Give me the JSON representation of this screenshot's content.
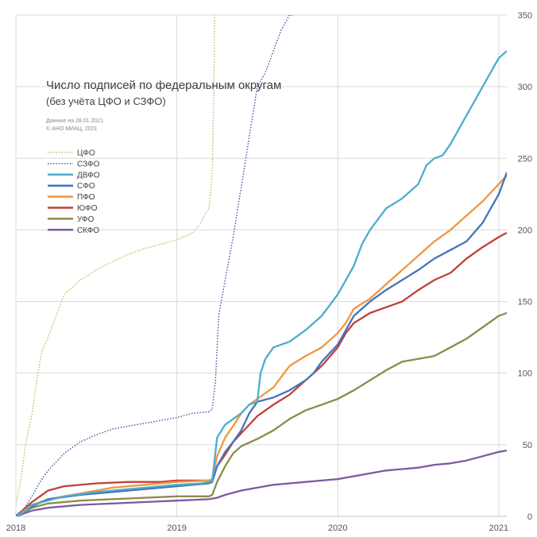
{
  "chart_data": {
    "type": "line",
    "title": "Число подписей по федеральным округам",
    "subtitle": "(без учёта ЦФО и СЗФО)",
    "notes": [
      "Данные на 28.01.2021",
      "© АНО МИАЦ, 2021"
    ],
    "xlabel": "",
    "ylabel": "",
    "x_ticks": [
      "2018",
      "2019",
      "2020",
      "2021"
    ],
    "xlim": [
      2018.0,
      2021.05
    ],
    "ylim": [
      0,
      350
    ],
    "y_ticks": [
      0,
      50,
      100,
      150,
      200,
      250,
      300,
      350
    ],
    "y_axis_side": "right",
    "grid": true,
    "legend_position": "left",
    "series": [
      {
        "name": "ЦФО",
        "color": "#a9c46a",
        "style": "dotted",
        "x": [
          2018.0,
          2018.03,
          2018.06,
          2018.1,
          2018.13,
          2018.16,
          2018.2,
          2018.25,
          2018.3,
          2018.4,
          2018.5,
          2018.6,
          2018.7,
          2018.8,
          2018.9,
          2019.0,
          2019.1,
          2019.15,
          2019.18,
          2019.2,
          2019.22,
          2019.23,
          2019.235,
          2019.25
        ],
        "y": [
          8,
          25,
          50,
          72,
          95,
          115,
          125,
          140,
          155,
          165,
          172,
          178,
          183,
          187,
          190,
          193,
          198,
          205,
          212,
          215,
          240,
          300,
          350,
          350
        ]
      },
      {
        "name": "СЗФО",
        "color": "#3a55a0",
        "style": "dotted",
        "x": [
          2018.0,
          2018.05,
          2018.1,
          2018.15,
          2018.2,
          2018.25,
          2018.3,
          2018.4,
          2018.5,
          2018.6,
          2018.7,
          2018.8,
          2018.9,
          2019.0,
          2019.1,
          2019.2,
          2019.22,
          2019.24,
          2019.26,
          2019.3,
          2019.35,
          2019.4,
          2019.45,
          2019.5,
          2019.55,
          2019.6,
          2019.65,
          2019.7,
          2019.72
        ],
        "y": [
          1,
          5,
          14,
          24,
          32,
          38,
          44,
          52,
          57,
          61,
          63,
          65,
          67,
          69,
          72,
          73,
          75,
          95,
          140,
          165,
          195,
          230,
          265,
          300,
          310,
          325,
          340,
          350,
          350
        ]
      },
      {
        "name": "ДВФО",
        "color": "#4aaecd",
        "style": "solid",
        "x": [
          2018.0,
          2018.05,
          2018.1,
          2018.2,
          2018.3,
          2018.5,
          2018.8,
          2019.0,
          2019.15,
          2019.2,
          2019.22,
          2019.25,
          2019.3,
          2019.35,
          2019.4,
          2019.45,
          2019.5,
          2019.52,
          2019.55,
          2019.6,
          2019.7,
          2019.8,
          2019.9,
          2020.0,
          2020.05,
          2020.1,
          2020.15,
          2020.2,
          2020.3,
          2020.4,
          2020.5,
          2020.55,
          2020.6,
          2020.65,
          2020.7,
          2020.8,
          2020.9,
          2021.0,
          2021.05
        ],
        "y": [
          0,
          3,
          8,
          11,
          14,
          17,
          20,
          22,
          23,
          24,
          25,
          55,
          64,
          68,
          72,
          78,
          80,
          100,
          110,
          118,
          122,
          130,
          140,
          155,
          165,
          175,
          190,
          200,
          215,
          222,
          232,
          245,
          250,
          252,
          260,
          280,
          300,
          320,
          325
        ]
      },
      {
        "name": "СФО",
        "color": "#4573b9",
        "style": "solid",
        "x": [
          2018.0,
          2018.05,
          2018.1,
          2018.2,
          2018.4,
          2018.6,
          2018.8,
          2019.0,
          2019.2,
          2019.22,
          2019.25,
          2019.3,
          2019.35,
          2019.4,
          2019.45,
          2019.5,
          2019.6,
          2019.7,
          2019.8,
          2019.85,
          2019.9,
          2020.0,
          2020.05,
          2020.1,
          2020.15,
          2020.2,
          2020.3,
          2020.4,
          2020.5,
          2020.6,
          2020.7,
          2020.8,
          2020.9,
          2021.0,
          2021.05
        ],
        "y": [
          0,
          3,
          7,
          12,
          15,
          17,
          19,
          21,
          23,
          24,
          35,
          45,
          52,
          60,
          72,
          80,
          83,
          88,
          95,
          100,
          108,
          120,
          130,
          140,
          145,
          150,
          158,
          165,
          172,
          180,
          186,
          192,
          205,
          225,
          240
        ]
      },
      {
        "name": "ПФО",
        "color": "#f1963f",
        "style": "solid",
        "x": [
          2018.0,
          2018.05,
          2018.1,
          2018.2,
          2018.4,
          2018.6,
          2018.8,
          2019.0,
          2019.2,
          2019.22,
          2019.25,
          2019.3,
          2019.35,
          2019.4,
          2019.45,
          2019.5,
          2019.6,
          2019.7,
          2019.8,
          2019.9,
          2020.0,
          2020.05,
          2020.1,
          2020.2,
          2020.3,
          2020.4,
          2020.5,
          2020.6,
          2020.7,
          2020.8,
          2020.9,
          2021.0,
          2021.05
        ],
        "y": [
          0,
          4,
          8,
          12,
          16,
          20,
          22,
          24,
          25,
          26,
          42,
          55,
          63,
          72,
          78,
          82,
          90,
          105,
          112,
          118,
          128,
          135,
          145,
          152,
          162,
          172,
          182,
          192,
          200,
          210,
          220,
          232,
          238
        ]
      },
      {
        "name": "ЮФО",
        "color": "#c0413b",
        "style": "solid",
        "x": [
          2018.0,
          2018.05,
          2018.1,
          2018.15,
          2018.2,
          2018.3,
          2018.5,
          2018.7,
          2018.9,
          2019.0,
          2019.2,
          2019.22,
          2019.25,
          2019.3,
          2019.35,
          2019.4,
          2019.45,
          2019.5,
          2019.6,
          2019.7,
          2019.8,
          2019.9,
          2020.0,
          2020.05,
          2020.1,
          2020.2,
          2020.3,
          2020.4,
          2020.5,
          2020.6,
          2020.7,
          2020.8,
          2020.9,
          2021.0,
          2021.05
        ],
        "y": [
          0,
          5,
          10,
          14,
          18,
          21,
          23,
          24,
          24,
          25,
          25,
          26,
          35,
          43,
          52,
          58,
          64,
          70,
          78,
          85,
          95,
          105,
          118,
          128,
          135,
          142,
          146,
          150,
          158,
          165,
          170,
          180,
          188,
          195,
          198
        ]
      },
      {
        "name": "УФО",
        "color": "#8d8b47",
        "style": "solid",
        "x": [
          2018.0,
          2018.05,
          2018.1,
          2018.2,
          2018.4,
          2018.6,
          2018.8,
          2019.0,
          2019.2,
          2019.22,
          2019.25,
          2019.3,
          2019.35,
          2019.4,
          2019.5,
          2019.6,
          2019.7,
          2019.8,
          2019.9,
          2020.0,
          2020.1,
          2020.2,
          2020.3,
          2020.4,
          2020.5,
          2020.6,
          2020.7,
          2020.8,
          2020.9,
          2021.0,
          2021.05
        ],
        "y": [
          0,
          3,
          6,
          9,
          11,
          12,
          13,
          14,
          14,
          15,
          24,
          35,
          44,
          49,
          54,
          60,
          68,
          74,
          78,
          82,
          88,
          95,
          102,
          108,
          110,
          112,
          118,
          124,
          132,
          140,
          142
        ]
      },
      {
        "name": "СКФО",
        "color": "#7b5aa0",
        "style": "solid",
        "x": [
          2018.0,
          2018.05,
          2018.1,
          2018.2,
          2018.4,
          2018.6,
          2018.8,
          2019.0,
          2019.2,
          2019.25,
          2019.3,
          2019.4,
          2019.5,
          2019.6,
          2019.7,
          2019.8,
          2019.9,
          2020.0,
          2020.1,
          2020.2,
          2020.3,
          2020.4,
          2020.5,
          2020.6,
          2020.7,
          2020.8,
          2020.9,
          2021.0,
          2021.05
        ],
        "y": [
          0,
          2,
          4,
          6,
          8,
          9,
          10,
          11,
          12,
          13,
          15,
          18,
          20,
          22,
          23,
          24,
          25,
          26,
          28,
          30,
          32,
          33,
          34,
          36,
          37,
          39,
          42,
          45,
          46
        ]
      }
    ]
  }
}
